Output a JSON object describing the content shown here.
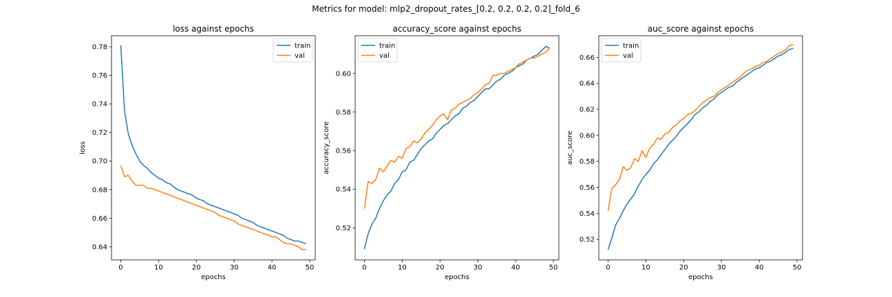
{
  "suptitle": "Metrics for model: mlp2_dropout_rates_[0.2, 0.2, 0.2, 0.2]_fold_6",
  "colors": {
    "train": "#1f77b4",
    "val": "#ff7f0e"
  },
  "chart_data": [
    {
      "type": "line",
      "title": "loss against epochs",
      "xlabel": "epochs",
      "ylabel": "loss",
      "xlim": [
        -2.45,
        51.45
      ],
      "ylim": [
        0.6308,
        0.7877
      ],
      "xticks": [
        0,
        10,
        20,
        30,
        40,
        50
      ],
      "yticks": [
        0.64,
        0.66,
        0.68,
        0.7,
        0.72,
        0.74,
        0.76,
        0.78
      ],
      "ytick_decimals": 2,
      "legend": "upper right",
      "series": [
        {
          "name": "train",
          "color": "#1f77b4",
          "x": [
            0,
            1,
            2,
            3,
            4,
            5,
            6,
            7,
            8,
            9,
            10,
            11,
            12,
            13,
            14,
            15,
            16,
            17,
            18,
            19,
            20,
            21,
            22,
            23,
            24,
            25,
            26,
            27,
            28,
            29,
            30,
            31,
            32,
            33,
            34,
            35,
            36,
            37,
            38,
            39,
            40,
            41,
            42,
            43,
            44,
            45,
            46,
            47,
            48,
            49
          ],
          "y": [
            0.781,
            0.735,
            0.719,
            0.711,
            0.705,
            0.7,
            0.697,
            0.695,
            0.692,
            0.69,
            0.688,
            0.687,
            0.685,
            0.684,
            0.682,
            0.68,
            0.679,
            0.678,
            0.677,
            0.676,
            0.674,
            0.673,
            0.672,
            0.67,
            0.669,
            0.668,
            0.667,
            0.666,
            0.665,
            0.664,
            0.663,
            0.662,
            0.66,
            0.659,
            0.658,
            0.657,
            0.655,
            0.654,
            0.653,
            0.652,
            0.651,
            0.65,
            0.649,
            0.648,
            0.646,
            0.645,
            0.644,
            0.644,
            0.643,
            0.642
          ]
        },
        {
          "name": "val",
          "color": "#ff7f0e",
          "x": [
            0,
            1,
            2,
            3,
            4,
            5,
            6,
            7,
            8,
            9,
            10,
            11,
            12,
            13,
            14,
            15,
            16,
            17,
            18,
            19,
            20,
            21,
            22,
            23,
            24,
            25,
            26,
            27,
            28,
            29,
            30,
            31,
            32,
            33,
            34,
            35,
            36,
            37,
            38,
            39,
            40,
            41,
            42,
            43,
            44,
            45,
            46,
            47,
            48,
            49
          ],
          "y": [
            0.697,
            0.689,
            0.69,
            0.686,
            0.683,
            0.683,
            0.683,
            0.681,
            0.681,
            0.68,
            0.679,
            0.678,
            0.677,
            0.676,
            0.675,
            0.674,
            0.673,
            0.672,
            0.671,
            0.67,
            0.669,
            0.668,
            0.667,
            0.666,
            0.665,
            0.664,
            0.662,
            0.661,
            0.66,
            0.659,
            0.658,
            0.656,
            0.655,
            0.654,
            0.653,
            0.652,
            0.651,
            0.65,
            0.649,
            0.648,
            0.647,
            0.647,
            0.645,
            0.643,
            0.642,
            0.642,
            0.641,
            0.64,
            0.638,
            0.638
          ]
        }
      ]
    },
    {
      "type": "line",
      "title": "accuracy_score against epochs",
      "xlabel": "epochs",
      "ylabel": "accuracy_score",
      "xlim": [
        -2.45,
        51.45
      ],
      "ylim": [
        0.5034,
        0.6195
      ],
      "xticks": [
        0,
        10,
        20,
        30,
        40,
        50
      ],
      "yticks": [
        0.52,
        0.54,
        0.56,
        0.58,
        0.6
      ],
      "ytick_decimals": 2,
      "legend": "upper left",
      "series": [
        {
          "name": "train",
          "color": "#1f77b4",
          "x": [
            0,
            1,
            2,
            3,
            4,
            5,
            6,
            7,
            8,
            9,
            10,
            11,
            12,
            13,
            14,
            15,
            16,
            17,
            18,
            19,
            20,
            21,
            22,
            23,
            24,
            25,
            26,
            27,
            28,
            29,
            30,
            31,
            32,
            33,
            34,
            35,
            36,
            37,
            38,
            39,
            40,
            41,
            42,
            43,
            44,
            45,
            46,
            47,
            48,
            49
          ],
          "y": [
            0.509,
            0.517,
            0.522,
            0.525,
            0.53,
            0.534,
            0.537,
            0.539,
            0.543,
            0.545,
            0.549,
            0.55,
            0.554,
            0.555,
            0.558,
            0.561,
            0.563,
            0.565,
            0.566,
            0.569,
            0.571,
            0.573,
            0.574,
            0.576,
            0.578,
            0.579,
            0.582,
            0.583,
            0.585,
            0.586,
            0.588,
            0.59,
            0.592,
            0.592,
            0.594,
            0.596,
            0.597,
            0.599,
            0.6,
            0.601,
            0.603,
            0.604,
            0.605,
            0.607,
            0.608,
            0.609,
            0.61,
            0.612,
            0.614,
            0.613
          ]
        },
        {
          "name": "val",
          "color": "#ff7f0e",
          "x": [
            0,
            1,
            2,
            3,
            4,
            5,
            6,
            7,
            8,
            9,
            10,
            11,
            12,
            13,
            14,
            15,
            16,
            17,
            18,
            19,
            20,
            21,
            22,
            23,
            24,
            25,
            26,
            27,
            28,
            29,
            30,
            31,
            32,
            33,
            34,
            35,
            36,
            37,
            38,
            39,
            40,
            41,
            42,
            43,
            44,
            45,
            46,
            47,
            48,
            49
          ],
          "y": [
            0.53,
            0.544,
            0.543,
            0.545,
            0.551,
            0.549,
            0.552,
            0.555,
            0.554,
            0.557,
            0.556,
            0.561,
            0.562,
            0.565,
            0.564,
            0.566,
            0.569,
            0.571,
            0.573,
            0.576,
            0.578,
            0.579,
            0.576,
            0.581,
            0.582,
            0.584,
            0.585,
            0.586,
            0.587,
            0.589,
            0.59,
            0.592,
            0.594,
            0.595,
            0.599,
            0.599,
            0.6,
            0.6,
            0.601,
            0.602,
            0.603,
            0.605,
            0.606,
            0.607,
            0.608,
            0.608,
            0.609,
            0.61,
            0.611,
            0.613
          ]
        }
      ]
    },
    {
      "type": "line",
      "title": "auc_score against epochs",
      "xlabel": "epochs",
      "ylabel": "auc_score",
      "xlim": [
        -2.45,
        51.45
      ],
      "ylim": [
        0.5042,
        0.6766
      ],
      "xticks": [
        0,
        10,
        20,
        30,
        40,
        50
      ],
      "yticks": [
        0.52,
        0.54,
        0.56,
        0.58,
        0.6,
        0.62,
        0.64,
        0.66
      ],
      "ytick_decimals": 2,
      "legend": "upper left",
      "series": [
        {
          "name": "train",
          "color": "#1f77b4",
          "x": [
            0,
            1,
            2,
            3,
            4,
            5,
            6,
            7,
            8,
            9,
            10,
            11,
            12,
            13,
            14,
            15,
            16,
            17,
            18,
            19,
            20,
            21,
            22,
            23,
            24,
            25,
            26,
            27,
            28,
            29,
            30,
            31,
            32,
            33,
            34,
            35,
            36,
            37,
            38,
            39,
            40,
            41,
            42,
            43,
            44,
            45,
            46,
            47,
            48,
            49
          ],
          "y": [
            0.512,
            0.521,
            0.531,
            0.536,
            0.542,
            0.547,
            0.551,
            0.555,
            0.561,
            0.566,
            0.57,
            0.573,
            0.578,
            0.581,
            0.585,
            0.589,
            0.593,
            0.596,
            0.599,
            0.603,
            0.606,
            0.609,
            0.612,
            0.616,
            0.618,
            0.621,
            0.623,
            0.626,
            0.628,
            0.631,
            0.633,
            0.635,
            0.637,
            0.638,
            0.641,
            0.643,
            0.645,
            0.647,
            0.649,
            0.651,
            0.652,
            0.654,
            0.656,
            0.657,
            0.659,
            0.661,
            0.662,
            0.664,
            0.666,
            0.667
          ]
        },
        {
          "name": "val",
          "color": "#ff7f0e",
          "x": [
            0,
            1,
            2,
            3,
            4,
            5,
            6,
            7,
            8,
            9,
            10,
            11,
            12,
            13,
            14,
            15,
            16,
            17,
            18,
            19,
            20,
            21,
            22,
            23,
            24,
            25,
            26,
            27,
            28,
            29,
            30,
            31,
            32,
            33,
            34,
            35,
            36,
            37,
            38,
            39,
            40,
            41,
            42,
            43,
            44,
            45,
            46,
            47,
            48,
            49
          ],
          "y": [
            0.542,
            0.559,
            0.562,
            0.566,
            0.576,
            0.573,
            0.575,
            0.582,
            0.58,
            0.588,
            0.583,
            0.59,
            0.593,
            0.598,
            0.597,
            0.601,
            0.602,
            0.606,
            0.608,
            0.611,
            0.613,
            0.616,
            0.617,
            0.619,
            0.622,
            0.625,
            0.627,
            0.629,
            0.63,
            0.633,
            0.635,
            0.637,
            0.639,
            0.641,
            0.643,
            0.645,
            0.648,
            0.65,
            0.651,
            0.653,
            0.654,
            0.656,
            0.657,
            0.659,
            0.661,
            0.663,
            0.664,
            0.666,
            0.669,
            0.67
          ]
        }
      ]
    }
  ]
}
